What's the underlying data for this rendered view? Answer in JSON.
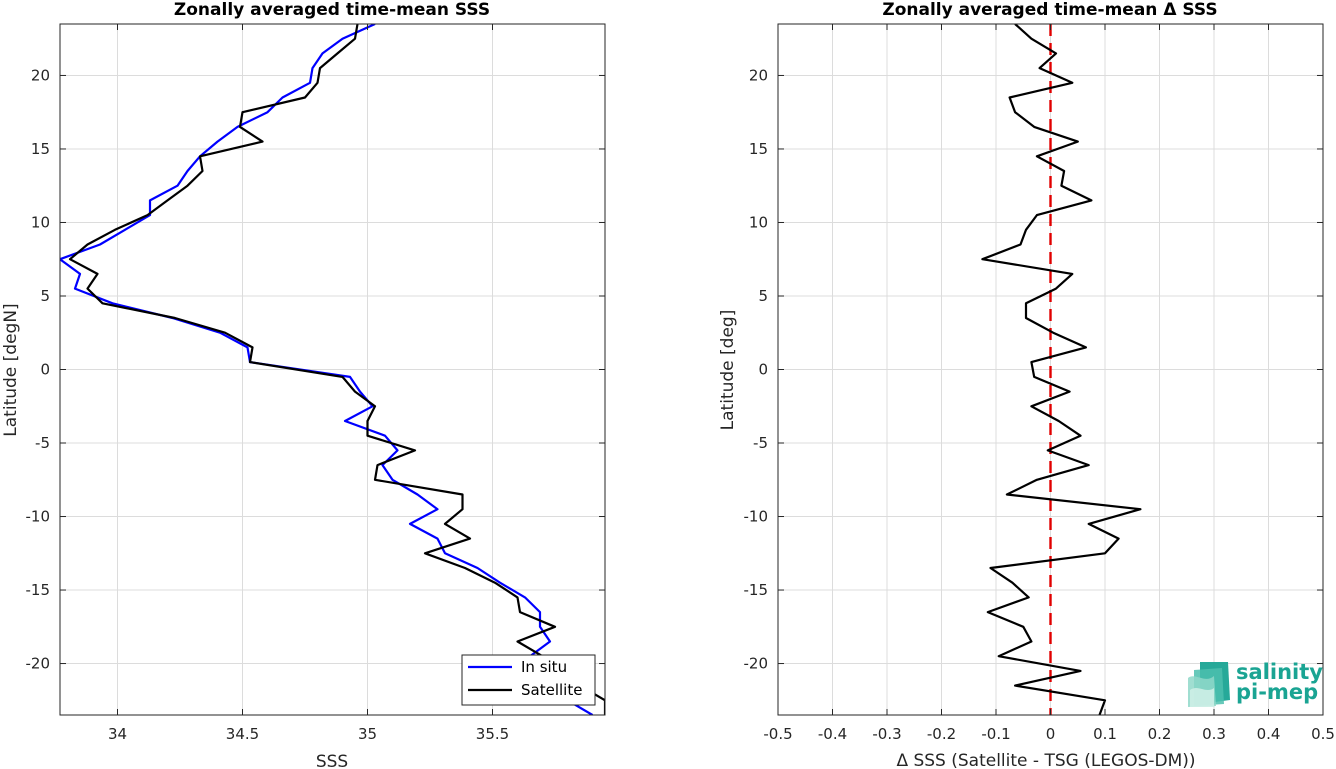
{
  "chart_data": [
    {
      "type": "line",
      "title": "Zonally averaged time-mean SSS",
      "xlabel": "SSS",
      "ylabel": "Latitude [degN]",
      "xlim": [
        33.77,
        35.95
      ],
      "ylim": [
        -23.5,
        23.5
      ],
      "xticks": [
        34,
        34.5,
        35,
        35.5
      ],
      "xtick_labels": [
        "34",
        "34.5",
        "35",
        "35.5"
      ],
      "yticks": [
        -20,
        -15,
        -10,
        -5,
        0,
        5,
        10,
        15,
        20
      ],
      "ytick_labels": [
        "-20",
        "-15",
        "-10",
        "-5",
        "0",
        "5",
        "10",
        "15",
        "20"
      ],
      "grid": true,
      "legend": {
        "placement": "bottom-right",
        "entries": [
          {
            "label": "In situ",
            "color": "#0000ff"
          },
          {
            "label": "Satellite",
            "color": "#000000"
          }
        ]
      },
      "series": [
        {
          "name": "In situ",
          "color": "#0000ff",
          "y": [
            23.5,
            22.5,
            21.5,
            20.5,
            19.5,
            18.5,
            17.5,
            16.5,
            15.5,
            14.5,
            13.5,
            12.5,
            11.5,
            10.5,
            9.5,
            8.5,
            7.5,
            6.5,
            5.5,
            4.5,
            3.5,
            2.5,
            1.5,
            0.5,
            -0.5,
            -1.5,
            -2.5,
            -3.5,
            -4.5,
            -5.5,
            -6.5,
            -7.5,
            -8.5,
            -9.5,
            -10.5,
            -11.5,
            -12.5,
            -13.5,
            -14.5,
            -15.5,
            -16.5,
            -17.5,
            -18.5,
            -19.5,
            -20.5,
            -21.5,
            -22.5,
            -23.5
          ],
          "x": [
            35.03,
            34.9,
            34.82,
            34.78,
            34.77,
            34.66,
            34.6,
            34.48,
            34.4,
            34.33,
            34.28,
            34.24,
            34.13,
            34.13,
            34.03,
            33.93,
            33.77,
            33.85,
            33.83,
            33.98,
            34.22,
            34.41,
            34.52,
            34.53,
            34.93,
            34.97,
            35.02,
            34.91,
            35.07,
            35.12,
            35.06,
            35.1,
            35.2,
            35.28,
            35.17,
            35.28,
            35.31,
            35.44,
            35.53,
            35.63,
            35.69,
            35.69,
            35.73,
            35.65,
            35.6,
            35.7,
            35.8,
            35.9
          ]
        },
        {
          "name": "Satellite",
          "color": "#000000",
          "y": [
            23.5,
            22.5,
            21.5,
            20.5,
            19.5,
            18.5,
            17.5,
            16.5,
            15.5,
            14.5,
            13.5,
            12.5,
            11.5,
            10.5,
            9.5,
            8.5,
            7.5,
            6.5,
            5.5,
            4.5,
            3.5,
            2.5,
            1.5,
            0.5,
            -0.5,
            -1.5,
            -2.5,
            -3.5,
            -4.5,
            -5.5,
            -6.5,
            -7.5,
            -8.5,
            -9.5,
            -10.5,
            -11.5,
            -12.5,
            -13.5,
            -14.5,
            -15.5,
            -16.5,
            -17.5,
            -18.5,
            -19.5,
            -20.5,
            -21.5,
            -22.5,
            -23.5
          ],
          "x": [
            34.96,
            34.95,
            34.88,
            34.81,
            34.8,
            34.75,
            34.5,
            34.49,
            34.58,
            34.33,
            34.34,
            34.28,
            34.2,
            34.12,
            33.99,
            33.88,
            33.81,
            33.92,
            33.88,
            33.94,
            34.23,
            34.43,
            34.54,
            34.53,
            34.9,
            34.95,
            35.03,
            35.0,
            35.0,
            35.19,
            35.04,
            35.03,
            35.38,
            35.38,
            35.31,
            35.41,
            35.23,
            35.39,
            35.51,
            35.6,
            35.61,
            35.75,
            35.6,
            35.7,
            35.75,
            35.85,
            35.95,
            35.95
          ]
        }
      ]
    },
    {
      "type": "line",
      "title": "Zonally averaged time-mean Δ SSS",
      "xlabel": "Δ SSS (Satellite - TSG (LEGOS-DM))",
      "ylabel": "Latitude [deg]",
      "xlim": [
        -0.5,
        0.5
      ],
      "ylim": [
        -23.5,
        23.5
      ],
      "xticks": [
        -0.5,
        -0.4,
        -0.3,
        -0.2,
        -0.1,
        0,
        0.1,
        0.2,
        0.3,
        0.4,
        0.5
      ],
      "xtick_labels": [
        "-0.5",
        "-0.4",
        "-0.3",
        "-0.2",
        "-0.1",
        "0",
        "0.1",
        "0.2",
        "0.3",
        "0.4",
        "0.5"
      ],
      "yticks": [
        -20,
        -15,
        -10,
        -5,
        0,
        5,
        10,
        15,
        20
      ],
      "ytick_labels": [
        "-20",
        "-15",
        "-10",
        "-5",
        "0",
        "5",
        "10",
        "15",
        "20"
      ],
      "grid": true,
      "reference_line": {
        "x": 0,
        "color": "#e00000",
        "style": "dashed"
      },
      "series": [
        {
          "color": "#000000",
          "y": [
            23.5,
            22.5,
            21.5,
            20.5,
            19.5,
            18.5,
            17.5,
            16.5,
            15.5,
            14.5,
            13.5,
            12.5,
            11.5,
            10.5,
            9.5,
            8.5,
            7.5,
            6.5,
            5.5,
            4.5,
            3.5,
            2.5,
            1.5,
            0.5,
            -0.5,
            -1.5,
            -2.5,
            -3.5,
            -4.5,
            -5.5,
            -6.5,
            -7.5,
            -8.5,
            -9.5,
            -10.5,
            -11.5,
            -12.5,
            -13.5,
            -14.5,
            -15.5,
            -16.5,
            -17.5,
            -18.5,
            -19.5,
            -20.5,
            -21.5,
            -22.5,
            -23.5
          ],
          "x": [
            -0.065,
            -0.035,
            0.01,
            -0.02,
            0.04,
            -0.075,
            -0.065,
            -0.03,
            0.05,
            -0.025,
            0.025,
            0.02,
            0.075,
            -0.025,
            -0.045,
            -0.055,
            -0.125,
            0.04,
            0.01,
            -0.045,
            -0.045,
            0.005,
            0.065,
            -0.035,
            -0.03,
            0.035,
            -0.035,
            0.015,
            0.055,
            -0.005,
            0.07,
            -0.025,
            -0.08,
            0.165,
            0.07,
            0.125,
            0.1,
            -0.11,
            -0.07,
            -0.04,
            -0.115,
            -0.05,
            -0.035,
            -0.095,
            0.055,
            -0.065,
            0.1,
            0.09
          ]
        }
      ]
    }
  ],
  "logo": {
    "line1": "salinity",
    "line2": "pi-mep"
  }
}
